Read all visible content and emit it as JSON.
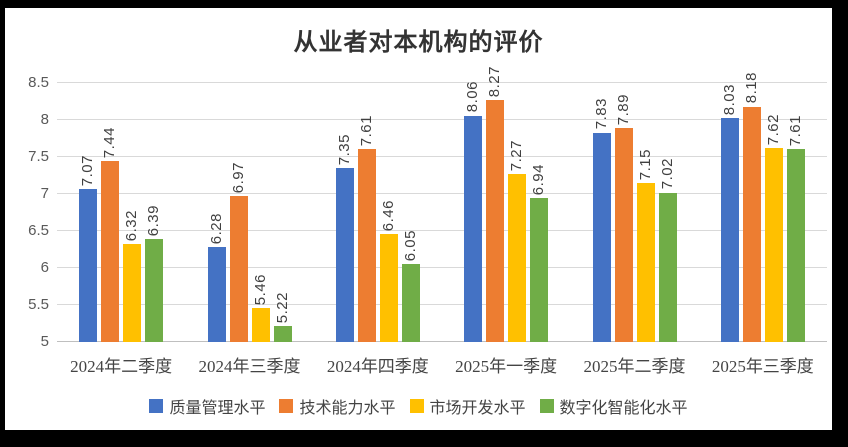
{
  "title": "从业者对本机构的评价",
  "chart_data": {
    "type": "bar",
    "title": "从业者对本机构的评价",
    "categories": [
      "2024年二季度",
      "2024年三季度",
      "2024年四季度",
      "2025年一季度",
      "2025年二季度",
      "2025年三季度"
    ],
    "series": [
      {
        "name": "质量管理水平",
        "color": "#4472C4",
        "values": [
          7.07,
          6.28,
          7.35,
          8.06,
          7.83,
          8.03
        ]
      },
      {
        "name": "技术能力水平",
        "color": "#ED7D31",
        "values": [
          7.44,
          6.97,
          7.61,
          8.27,
          7.89,
          8.18
        ]
      },
      {
        "name": "市场开发水平",
        "color": "#FFC000",
        "values": [
          6.32,
          5.46,
          6.46,
          7.27,
          7.15,
          7.62
        ]
      },
      {
        "name": "数字化智能化水平",
        "color": "#70AD47",
        "values": [
          6.39,
          5.22,
          6.05,
          6.94,
          7.02,
          7.61
        ]
      }
    ],
    "ylim": [
      5,
      8.5
    ],
    "ytick_step": 0.5,
    "grid": true,
    "gridline_color": "#d9d9d9",
    "legend_position": "bottom",
    "data_labels": "rotated-90",
    "label_decimals": 2
  }
}
